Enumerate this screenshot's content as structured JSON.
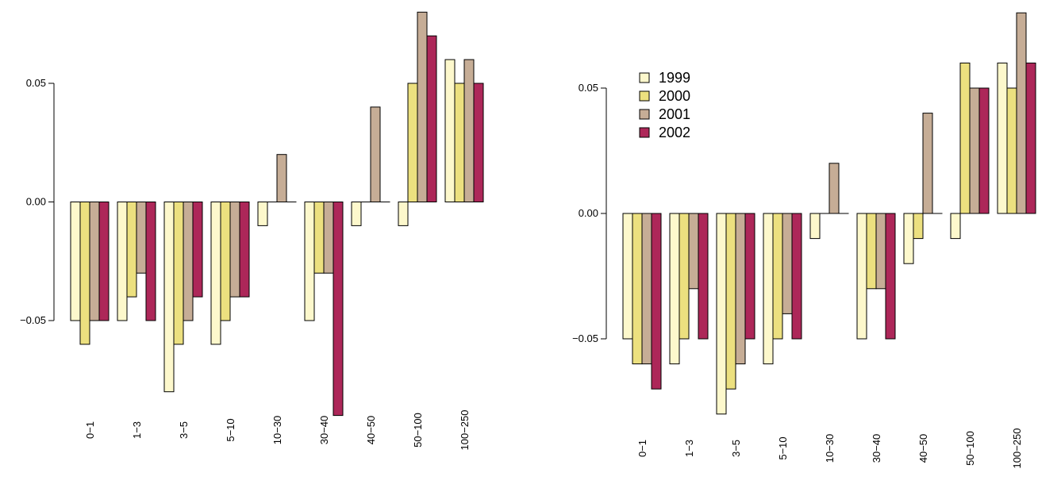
{
  "colors": {
    "1999": "#fdf8cc",
    "2000": "#ece07f",
    "2001": "#c6ad96",
    "2002": "#ad2759",
    "stroke": "#000000"
  },
  "chart_data": [
    {
      "type": "bar",
      "categories": [
        "0−1",
        "1−3",
        "3−5",
        "5−10",
        "10−30",
        "30−40",
        "40−50",
        "50−100",
        "100−250"
      ],
      "series": [
        {
          "name": "1999",
          "values": [
            -0.05,
            -0.05,
            -0.08,
            -0.06,
            -0.01,
            -0.05,
            -0.01,
            -0.01,
            0.06
          ]
        },
        {
          "name": "2000",
          "values": [
            -0.06,
            -0.04,
            -0.06,
            -0.05,
            0.0,
            -0.03,
            0.0,
            0.05,
            0.05
          ]
        },
        {
          "name": "2001",
          "values": [
            -0.05,
            -0.03,
            -0.05,
            -0.04,
            0.02,
            -0.03,
            0.04,
            0.08,
            0.06
          ]
        },
        {
          "name": "2002",
          "values": [
            -0.05,
            -0.05,
            -0.04,
            -0.04,
            0.0,
            -0.09,
            0.0,
            0.07,
            0.05
          ]
        }
      ],
      "yticks": [
        -0.05,
        0.0,
        0.05
      ],
      "ytick_labels": [
        "−0.05",
        "0.00",
        "0.05"
      ],
      "ylim": [
        -0.09,
        0.08
      ],
      "legend": null,
      "grid": false
    },
    {
      "type": "bar",
      "categories": [
        "0−1",
        "1−3",
        "3−5",
        "5−10",
        "10−30",
        "30−40",
        "40−50",
        "50−100",
        "100−250"
      ],
      "series": [
        {
          "name": "1999",
          "values": [
            -0.05,
            -0.06,
            -0.08,
            -0.06,
            -0.01,
            -0.05,
            -0.02,
            -0.01,
            0.06
          ]
        },
        {
          "name": "2000",
          "values": [
            -0.06,
            -0.05,
            -0.07,
            -0.05,
            0.0,
            -0.03,
            -0.01,
            0.06,
            0.05
          ]
        },
        {
          "name": "2001",
          "values": [
            -0.06,
            -0.03,
            -0.06,
            -0.04,
            0.02,
            -0.03,
            0.04,
            0.05,
            0.08
          ]
        },
        {
          "name": "2002",
          "values": [
            -0.07,
            -0.05,
            -0.05,
            -0.05,
            0.0,
            -0.05,
            0.0,
            0.05,
            0.06
          ]
        }
      ],
      "yticks": [
        -0.05,
        0.0,
        0.05
      ],
      "ytick_labels": [
        "−0.05",
        "0.00",
        "0.05"
      ],
      "ylim": [
        -0.08,
        0.08
      ],
      "legend": {
        "position": "top-left",
        "entries": [
          "1999",
          "2000",
          "2001",
          "2002"
        ]
      },
      "grid": false
    }
  ]
}
